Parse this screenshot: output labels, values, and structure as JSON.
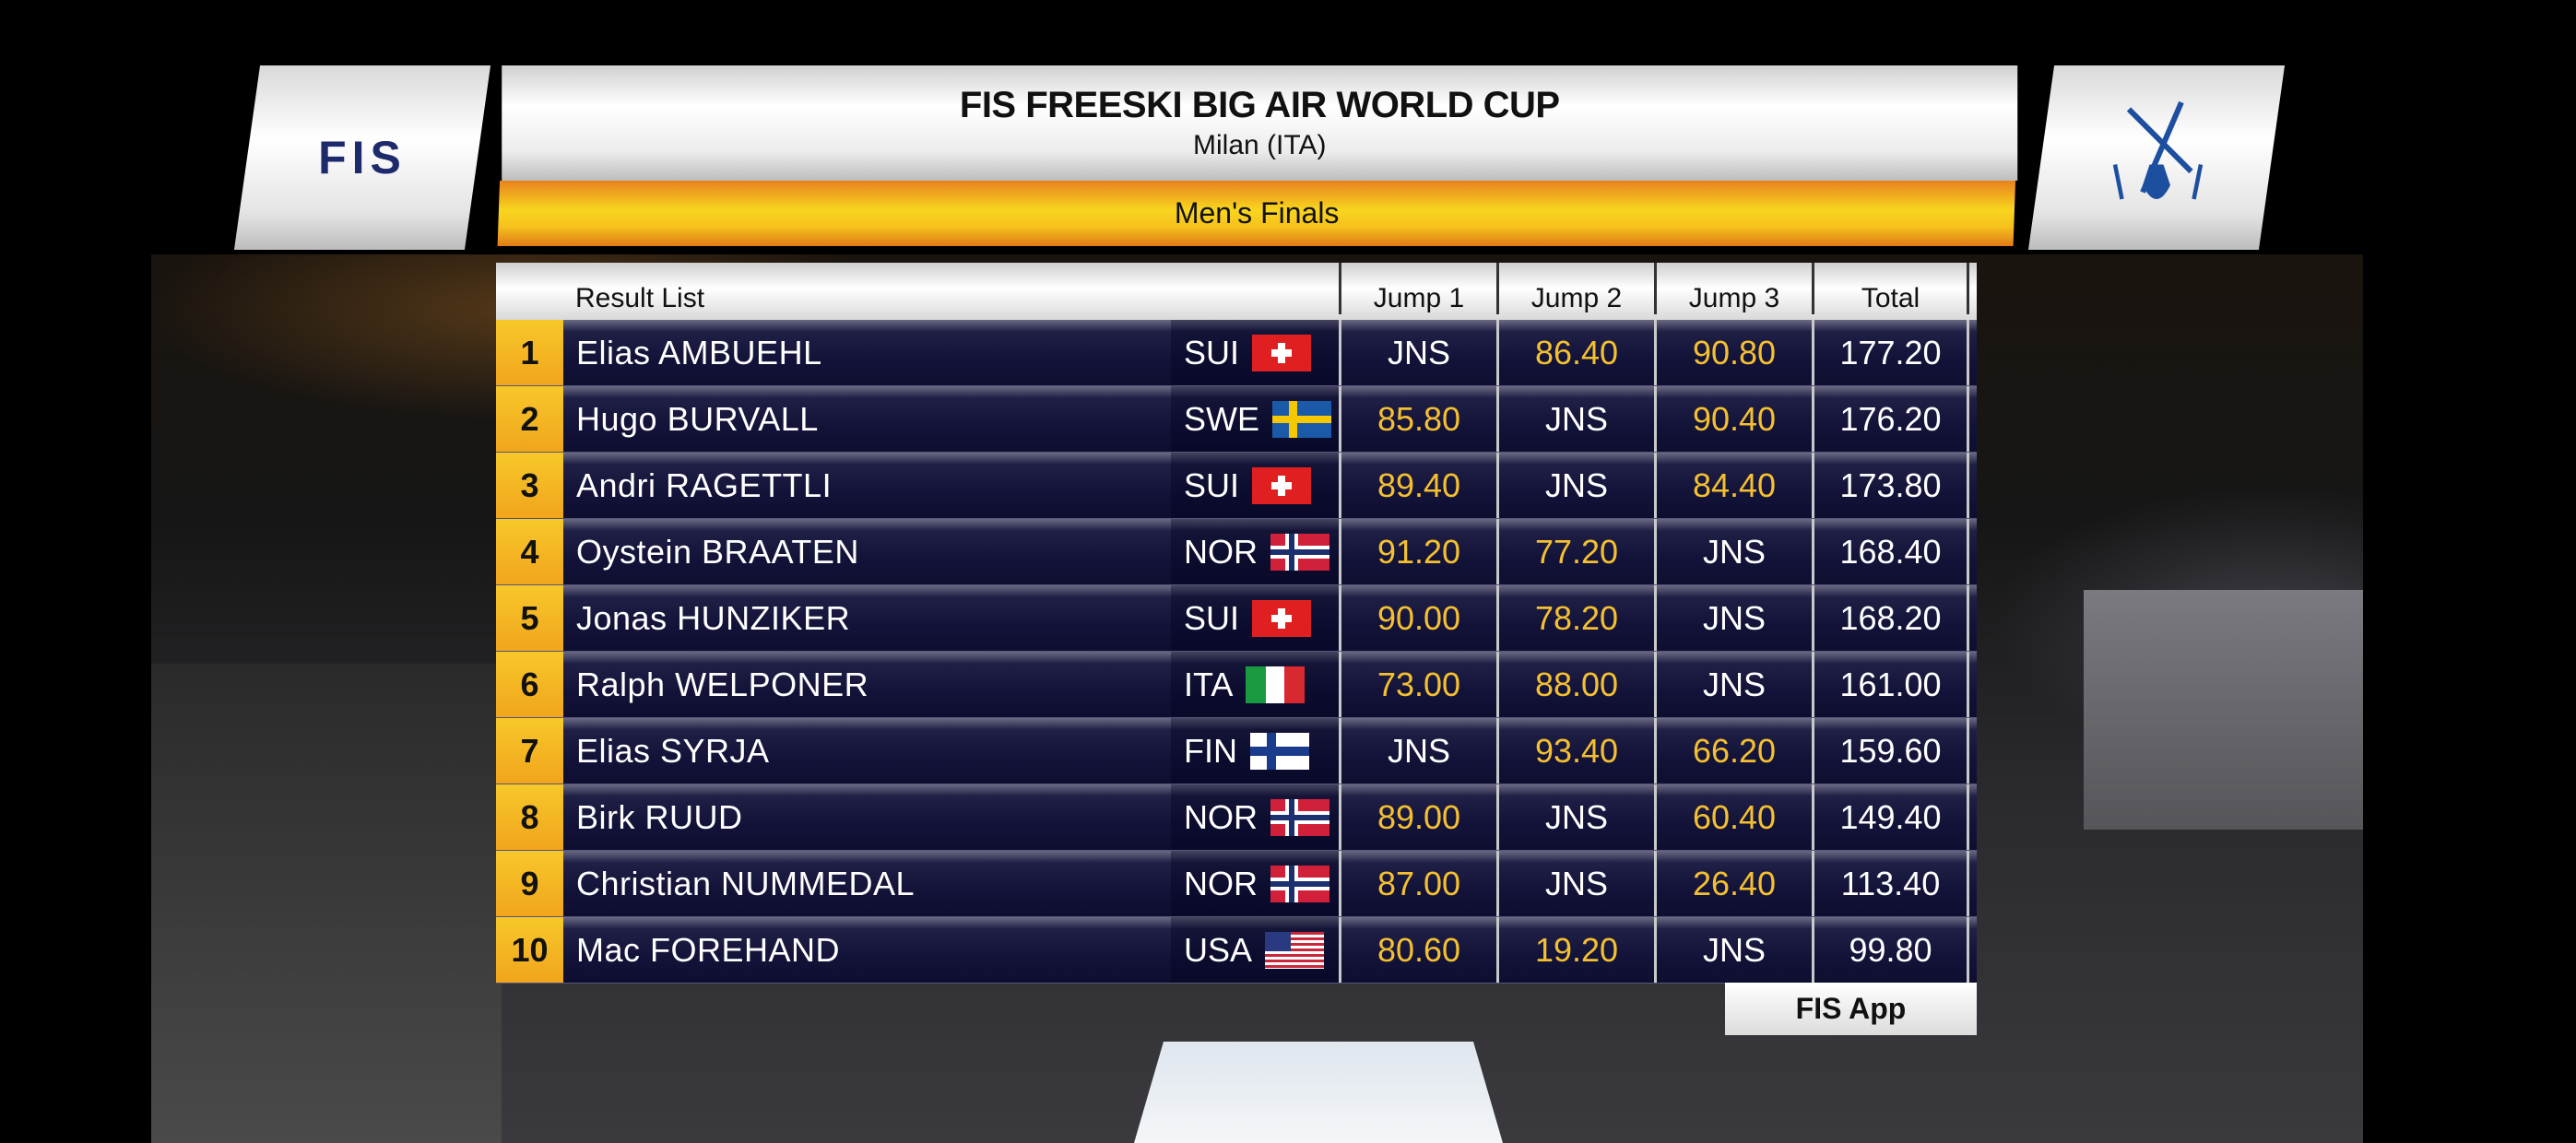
{
  "header": {
    "title": "FIS FREESKI BIG AIR WORLD CUP",
    "location": "Milan (ITA)",
    "event": "Men's Finals",
    "logo_text": "FIS"
  },
  "table": {
    "columns": {
      "result_list": "Result List",
      "jump1": "Jump 1",
      "jump2": "Jump 2",
      "jump3": "Jump 3",
      "total": "Total"
    },
    "rows": [
      {
        "rank": "1",
        "name": "Elias AMBUEHL",
        "nation": "SUI",
        "jump1": "JNS",
        "jump2": "86.40",
        "jump3": "90.80",
        "total": "177.20"
      },
      {
        "rank": "2",
        "name": "Hugo BURVALL",
        "nation": "SWE",
        "jump1": "85.80",
        "jump2": "JNS",
        "jump3": "90.40",
        "total": "176.20"
      },
      {
        "rank": "3",
        "name": "Andri RAGETTLI",
        "nation": "SUI",
        "jump1": "89.40",
        "jump2": "JNS",
        "jump3": "84.40",
        "total": "173.80"
      },
      {
        "rank": "4",
        "name": "Oystein BRAATEN",
        "nation": "NOR",
        "jump1": "91.20",
        "jump2": "77.20",
        "jump3": "JNS",
        "total": "168.40"
      },
      {
        "rank": "5",
        "name": "Jonas HUNZIKER",
        "nation": "SUI",
        "jump1": "90.00",
        "jump2": "78.20",
        "jump3": "JNS",
        "total": "168.20"
      },
      {
        "rank": "6",
        "name": "Ralph WELPONER",
        "nation": "ITA",
        "jump1": "73.00",
        "jump2": "88.00",
        "jump3": "JNS",
        "total": "161.00"
      },
      {
        "rank": "7",
        "name": "Elias SYRJA",
        "nation": "FIN",
        "jump1": "JNS",
        "jump2": "93.40",
        "jump3": "66.20",
        "total": "159.60"
      },
      {
        "rank": "8",
        "name": "Birk RUUD",
        "nation": "NOR",
        "jump1": "89.00",
        "jump2": "JNS",
        "jump3": "60.40",
        "total": "149.40"
      },
      {
        "rank": "9",
        "name": "Christian NUMMEDAL",
        "nation": "NOR",
        "jump1": "87.00",
        "jump2": "JNS",
        "jump3": "26.40",
        "total": "113.40"
      },
      {
        "rank": "10",
        "name": "Mac FOREHAND",
        "nation": "USA",
        "jump1": "80.60",
        "jump2": "19.20",
        "jump3": "JNS",
        "total": "99.80"
      }
    ]
  },
  "footer": {
    "app_label": "FIS App"
  },
  "colors": {
    "accent_yellow": "#f6c21c",
    "score_yellow": "#f5c030",
    "row_navy": "#13133a",
    "logo_blue": "#1d2a6b"
  }
}
